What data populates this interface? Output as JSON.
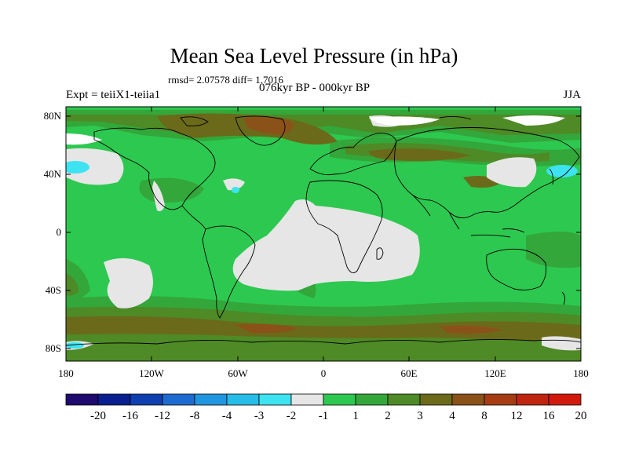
{
  "title": "Mean Sea Level Pressure (in hPa)",
  "stats": "rmsd= 2.07578 diff= 1.7016",
  "left_label": "Expt = teiiX1-teiia1",
  "center_label": "076kyr BP - 000kyr BP",
  "right_label": "JJA",
  "lat_ticks": [
    "80N",
    "40N",
    "0",
    "40S",
    "80S"
  ],
  "lon_ticks": [
    "180",
    "120W",
    "60W",
    "0",
    "60E",
    "120E",
    "180"
  ],
  "colorbar": {
    "colors": [
      "#1f0a6e",
      "#0a1f8f",
      "#1040b0",
      "#1e6bd0",
      "#2196e0",
      "#27bde8",
      "#3de3f0",
      "#e6e6e6",
      "#2dc850",
      "#33a73a",
      "#4e8a26",
      "#6b6a1a",
      "#8a5218",
      "#a53c12",
      "#bf2610",
      "#d21a0c"
    ],
    "labels": [
      "-20",
      "-16",
      "-12",
      "-8",
      "-4",
      "-3",
      "-2",
      "-1",
      "1",
      "2",
      "3",
      "4",
      "8",
      "12",
      "16",
      "20"
    ]
  }
}
